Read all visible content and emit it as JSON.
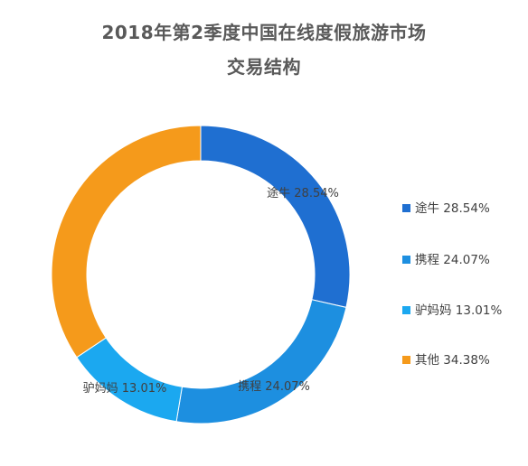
{
  "chart_data": {
    "type": "pie",
    "title_line1": "2018年第2季度中国在线度假旅游市场",
    "title_line2": "交易结构",
    "slices": [
      {
        "name": "途牛",
        "value": 28.54,
        "label": "途牛 28.54%",
        "color": "#1f6fd1"
      },
      {
        "name": "携程",
        "value": 24.07,
        "label": "携程 24.07%",
        "color": "#1d8fe0"
      },
      {
        "name": "驴妈妈",
        "value": 13.01,
        "label": "驴妈妈 13.01%",
        "color": "#1ba8f0"
      },
      {
        "name": "其他",
        "value": 34.38,
        "label": "其他 34.38%",
        "color": "#f59a1b"
      }
    ],
    "legend_placement": "right"
  }
}
